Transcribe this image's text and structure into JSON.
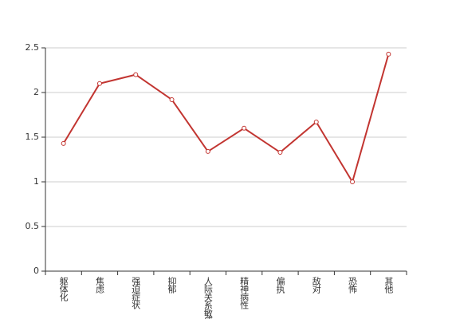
{
  "chart_data": {
    "type": "line",
    "categories": [
      "躯体化",
      "焦虑",
      "强迫症状",
      "抑郁",
      "人际关系敏感",
      "精神病性",
      "偏执",
      "敌对",
      "恐怖",
      "其他"
    ],
    "series": [
      {
        "color": "#c23531",
        "values": [
          1.43,
          2.1,
          2.2,
          1.92,
          1.34,
          1.6,
          1.33,
          1.67,
          1.0,
          2.43
        ]
      }
    ],
    "ylim": [
      0,
      2.5
    ],
    "yticks": [
      0,
      0.5,
      1,
      1.5,
      2,
      2.5
    ],
    "grid": true
  }
}
